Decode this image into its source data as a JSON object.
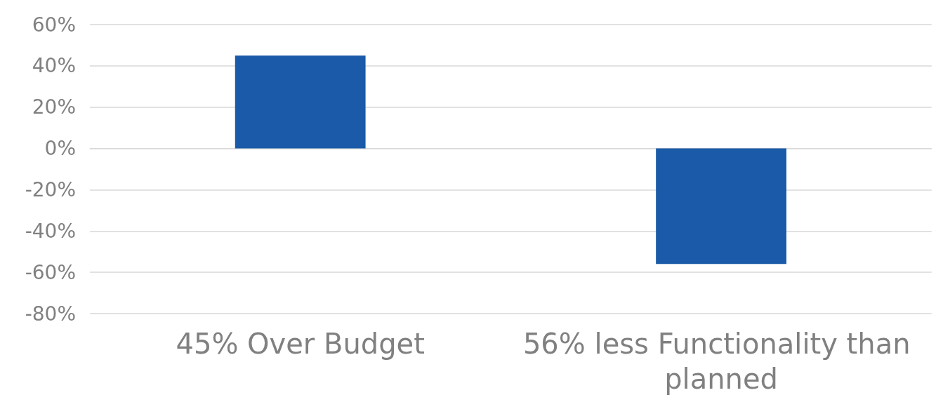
{
  "chart_data": {
    "type": "bar",
    "categories": [
      "45% Over Budget",
      "56% less Functionality than planned"
    ],
    "values": [
      45,
      -56
    ],
    "color": "#1a5aa8",
    "ylim": [
      -80,
      60
    ],
    "yticks": [
      {
        "value": -80,
        "label": "-80%"
      },
      {
        "value": -60,
        "label": "-60%"
      },
      {
        "value": -40,
        "label": "-40%"
      },
      {
        "value": -20,
        "label": "-20%"
      },
      {
        "value": 0,
        "label": "0%"
      },
      {
        "value": 20,
        "label": "20%"
      },
      {
        "value": 40,
        "label": "40%"
      },
      {
        "value": 60,
        "label": "60%"
      }
    ],
    "grid": "y"
  }
}
